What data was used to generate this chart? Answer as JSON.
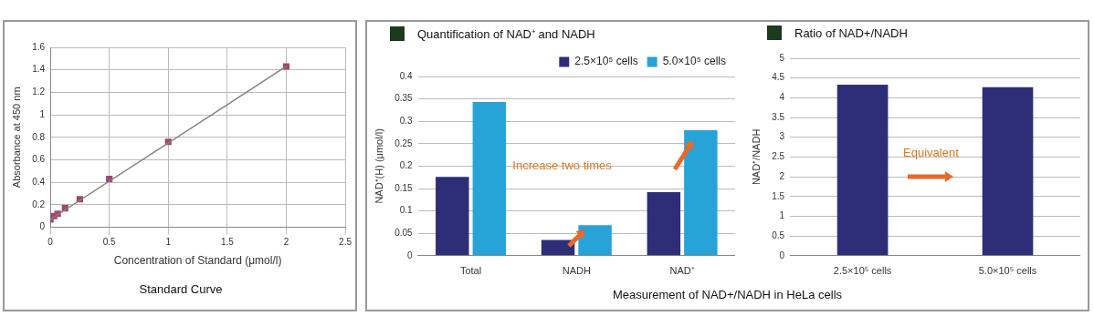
{
  "chart_data": [
    {
      "type": "scatter",
      "xlabel": "Concentration of Standard (μmol/l)",
      "ylabel": "Absorbance at 450 nm",
      "annotations": [
        "Standard Curve"
      ],
      "xlim": [
        0,
        2.5
      ],
      "xticks": [
        0,
        0.5,
        1,
        1.5,
        2,
        2.5
      ],
      "ylim": [
        0,
        1.6
      ],
      "yticks": [
        0,
        0.2,
        0.4,
        0.6,
        0.8,
        1,
        1.2,
        1.4,
        1.6
      ],
      "grid": true,
      "marker": "square",
      "series": [
        {
          "type": "line",
          "color": "#808080",
          "x": [
            0,
            2
          ],
          "values": [
            0.07,
            1.43
          ],
          "marker": "none"
        },
        {
          "color": "#a3456e",
          "x": [
            0,
            0.031,
            0.0625,
            0.125,
            0.25,
            0.5,
            1,
            2
          ],
          "values": [
            0.07,
            0.1,
            0.12,
            0.17,
            0.25,
            0.43,
            0.76,
            1.43
          ]
        }
      ]
    },
    {
      "type": "bar",
      "title": "Quantification of NAD⁺ and NADH",
      "ylabel": "NAD⁺(H) (μmol/l)",
      "categories": [
        "Total",
        "NADH",
        "NAD⁺"
      ],
      "ylim": [
        0,
        0.4
      ],
      "yticks": [
        0,
        0.05,
        0.1,
        0.15,
        0.2,
        0.25,
        0.3,
        0.35,
        0.4
      ],
      "grid": "y",
      "legend": "top right",
      "annotations": [
        "Increase two times",
        "Measurement  of NAD+/NADH in HeLa cells"
      ],
      "series": [
        {
          "name": "2.5×10⁵ cells",
          "color": "#2e2e78",
          "values": [
            0.176,
            0.035,
            0.142
          ]
        },
        {
          "name": "5.0×10⁵ cells",
          "color": "#27a3d8",
          "values": [
            0.343,
            0.068,
            0.28
          ]
        }
      ]
    },
    {
      "type": "bar",
      "title": "Ratio of NAD+/NADH",
      "ylabel": "NAD⁺/NADH",
      "categories": [
        "2.5×10⁵ cells",
        "5.0×10⁵ cells"
      ],
      "ylim": [
        0,
        5
      ],
      "yticks": [
        0,
        0.5,
        1,
        1.5,
        2,
        2.5,
        3,
        3.5,
        4,
        4.5,
        5
      ],
      "grid": "y",
      "annotations": [
        "Equivalent"
      ],
      "values": [
        4.33,
        4.27
      ],
      "color": "#2e2e78"
    }
  ]
}
